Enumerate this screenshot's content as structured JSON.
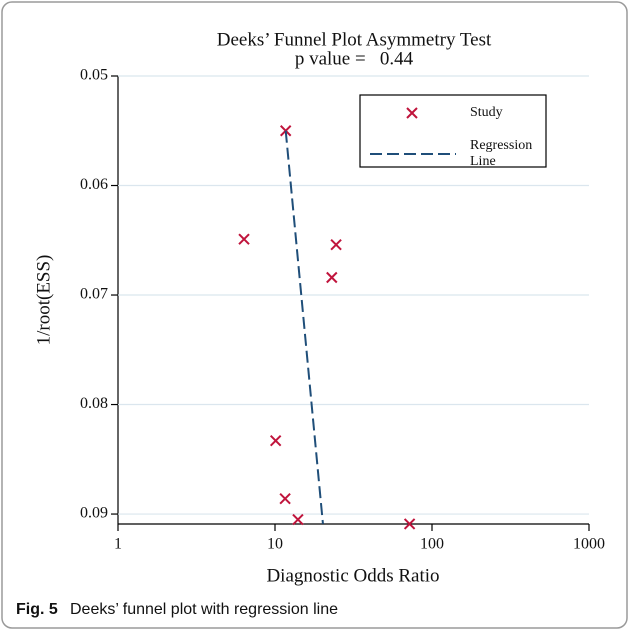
{
  "chart_data": {
    "type": "scatter",
    "title": "Deeks’ Funnel Plot Asymmetry Test",
    "subtitle": "p value =   0.44",
    "xlabel": "Diagnostic Odds Ratio",
    "ylabel": "1/root(ESS)",
    "xscale": "log",
    "xlim": [
      1,
      1000
    ],
    "xticks": [
      1,
      10,
      100,
      1000
    ],
    "ylim": [
      0.05,
      0.091
    ],
    "yticks": [
      0.05,
      0.06,
      0.07,
      0.08,
      0.09
    ],
    "y_inverted": true,
    "grid": true,
    "legend": "top-right",
    "series": [
      {
        "name": "Study",
        "color": "#c0143c",
        "marker": "x",
        "x": [
          11.7,
          6.35,
          24.5,
          23,
          10.1,
          11.6,
          14,
          72
        ],
        "values": [
          0.055,
          0.0649,
          0.0654,
          0.0684,
          0.0833,
          0.0886,
          0.0905,
          0.0909
        ]
      },
      {
        "name": "Regression Line",
        "color": "#1f4e79",
        "marker": "dashed-line",
        "x": [
          11.7,
          20.2
        ],
        "values": [
          0.055,
          0.0909
        ]
      }
    ]
  },
  "caption": {
    "label": "Fig. 5",
    "text": "Deeks’ funnel plot with regression line"
  }
}
